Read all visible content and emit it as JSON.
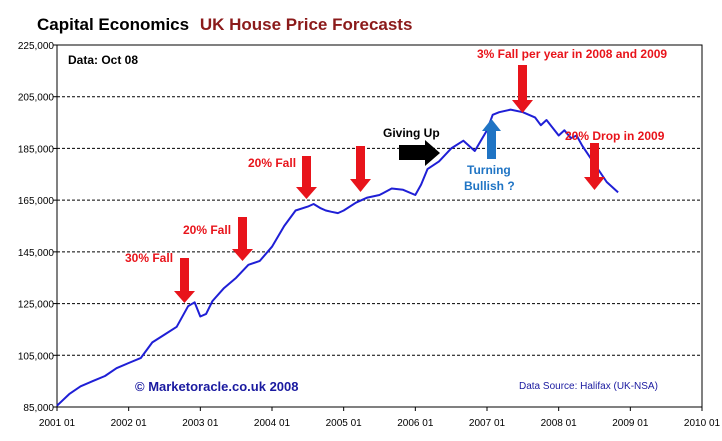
{
  "chart_data": {
    "type": "line",
    "title_prefix": "Capital Economics",
    "title_main": "UK House Price Forecasts",
    "data_date": "Data: Oct 08",
    "watermark": "© Marketoracle.co.uk 2008",
    "source": "Data Source: Halifax (UK-NSA)",
    "xlabel": "",
    "ylabel": "",
    "xlim": [
      2001.0,
      2010.0
    ],
    "ylim": [
      85000,
      225000
    ],
    "y_ticks": [
      "85,000",
      "105,000",
      "125,000",
      "145,000",
      "165,000",
      "185,000",
      "205,000",
      "225,000"
    ],
    "x_ticks": [
      "2001 01",
      "2002 01",
      "2003 01",
      "2004 01",
      "2005 01",
      "2006 01",
      "2007 01",
      "2008 01",
      "2009 01",
      "2010 01"
    ],
    "grid": true,
    "colors": {
      "line": "#1f1fd6",
      "arrow_red": "#e8141b",
      "arrow_black": "#000000",
      "arrow_blue": "#1f74c4",
      "label_red": "#e8141b",
      "label_blue": "#1f74c4",
      "title_main": "#8b1a1a",
      "source": "#1a1aa0",
      "watermark": "#1a1aa0"
    },
    "series": [
      {
        "x": [
          2001.0,
          2001.17,
          2001.33,
          2001.5,
          2001.67,
          2001.83,
          2002.0,
          2002.17,
          2002.33,
          2002.5,
          2002.67,
          2002.83,
          2002.92,
          2003.0,
          2003.08,
          2003.17,
          2003.33,
          2003.5,
          2003.67,
          2003.83,
          2004.0,
          2004.17,
          2004.33,
          2004.5,
          2004.58,
          2004.67,
          2004.75,
          2004.83,
          2004.92,
          2005.0,
          2005.17,
          2005.33,
          2005.5,
          2005.67,
          2005.83,
          2006.0,
          2006.08,
          2006.17,
          2006.33,
          2006.5,
          2006.67,
          2006.83,
          2007.0,
          2007.08,
          2007.17,
          2007.33,
          2007.5,
          2007.67,
          2007.75,
          2007.83,
          2008.0,
          2008.08,
          2008.17,
          2008.25,
          2008.33,
          2008.5,
          2008.67,
          2008.83
        ],
        "y": [
          85500,
          90000,
          93000,
          95000,
          97000,
          100000,
          102000,
          104000,
          110000,
          113000,
          116000,
          124000,
          125500,
          120000,
          121000,
          126000,
          131000,
          135000,
          140000,
          141500,
          147000,
          155000,
          161000,
          162500,
          163500,
          162000,
          161000,
          160500,
          160000,
          161000,
          164000,
          166000,
          167000,
          169500,
          169000,
          167000,
          171000,
          177000,
          180000,
          185000,
          188000,
          184000,
          192000,
          198000,
          199000,
          200000,
          199000,
          197000,
          194000,
          196000,
          190000,
          192000,
          189000,
          190000,
          186000,
          179000,
          172000,
          168000
        ]
      }
    ],
    "annotations": {
      "fall_30": "30% Fall",
      "fall_20_a": "20% Fall",
      "fall_20_b": "20% Fall",
      "giving_up": "Giving Up",
      "fall_3pct": "3% Fall  per year in 2008 and 2009",
      "turning_1": "Turning",
      "turning_2": "Bullish ?",
      "drop_2009": "20% Drop in 2009"
    }
  }
}
